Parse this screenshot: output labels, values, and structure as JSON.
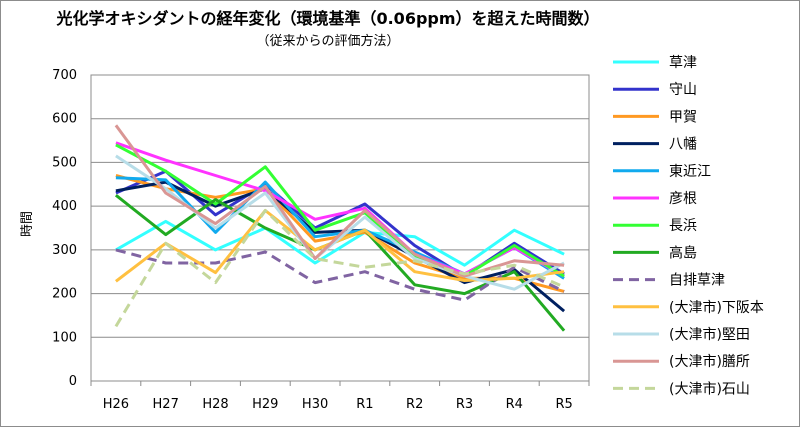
{
  "chart_data": {
    "type": "line",
    "title": "光化学オキシダントの経年変化（環境基準（0.06ppm）を超えた時間数）",
    "subtitle": "（従来からの評価方法）",
    "xlabel": "",
    "ylabel": "時間",
    "ylim": [
      0,
      700
    ],
    "yticks": [
      0,
      100,
      200,
      300,
      400,
      500,
      600,
      700
    ],
    "grid": true,
    "legend_position": "right",
    "categories": [
      "H26",
      "H27",
      "H28",
      "H29",
      "H30",
      "R1",
      "R2",
      "R3",
      "R4",
      "R5"
    ],
    "series": [
      {
        "name": "草津",
        "color": "#33ffff",
        "dash": false,
        "values": [
          300,
          365,
          300,
          350,
          270,
          340,
          330,
          265,
          345,
          290
        ]
      },
      {
        "name": "守山",
        "color": "#3333cc",
        "dash": false,
        "values": [
          430,
          480,
          380,
          450,
          350,
          405,
          310,
          240,
          315,
          245
        ]
      },
      {
        "name": "甲賀",
        "color": "#ff9922",
        "dash": false,
        "values": [
          470,
          440,
          420,
          440,
          320,
          340,
          270,
          235,
          235,
          205
        ]
      },
      {
        "name": "八幡",
        "color": "#002060",
        "dash": false,
        "values": [
          435,
          455,
          400,
          440,
          340,
          345,
          285,
          225,
          255,
          160
        ]
      },
      {
        "name": "東近江",
        "color": "#11aaee",
        "dash": false,
        "values": [
          465,
          460,
          340,
          455,
          330,
          345,
          295,
          245,
          305,
          235
        ]
      },
      {
        "name": "彦根",
        "color": "#ff33ff",
        "dash": false,
        "values": [
          545,
          505,
          470,
          435,
          370,
          395,
          290,
          245,
          305,
          240
        ]
      },
      {
        "name": "長浜",
        "color": "#33ff33",
        "dash": false,
        "values": [
          540,
          480,
          405,
          490,
          345,
          385,
          285,
          240,
          310,
          240
        ]
      },
      {
        "name": "高島",
        "color": "#22aa22",
        "dash": false,
        "values": [
          425,
          335,
          415,
          350,
          300,
          345,
          220,
          200,
          250,
          115
        ]
      },
      {
        "name": "自排草津",
        "color": "#8064a2",
        "dash": true,
        "values": [
          300,
          270,
          270,
          295,
          225,
          250,
          210,
          185,
          260,
          205
        ]
      },
      {
        "name": "(大津市)下阪本",
        "color": "#ffc040",
        "dash": false,
        "values": [
          228,
          315,
          248,
          390,
          300,
          345,
          250,
          230,
          235,
          250
        ]
      },
      {
        "name": "(大津市)堅田",
        "color": "#b7dde8",
        "dash": false,
        "values": [
          515,
          440,
          350,
          430,
          280,
          375,
          280,
          240,
          210,
          270
        ]
      },
      {
        "name": "(大津市)膳所",
        "color": "#d99694",
        "dash": false,
        "values": [
          585,
          430,
          360,
          445,
          280,
          390,
          290,
          240,
          275,
          265
        ]
      },
      {
        "name": "(大津市)石山",
        "color": "#c4d79b",
        "dash": true,
        "values": [
          125,
          315,
          225,
          390,
          280,
          260,
          275,
          245,
          265,
          215
        ]
      }
    ]
  }
}
